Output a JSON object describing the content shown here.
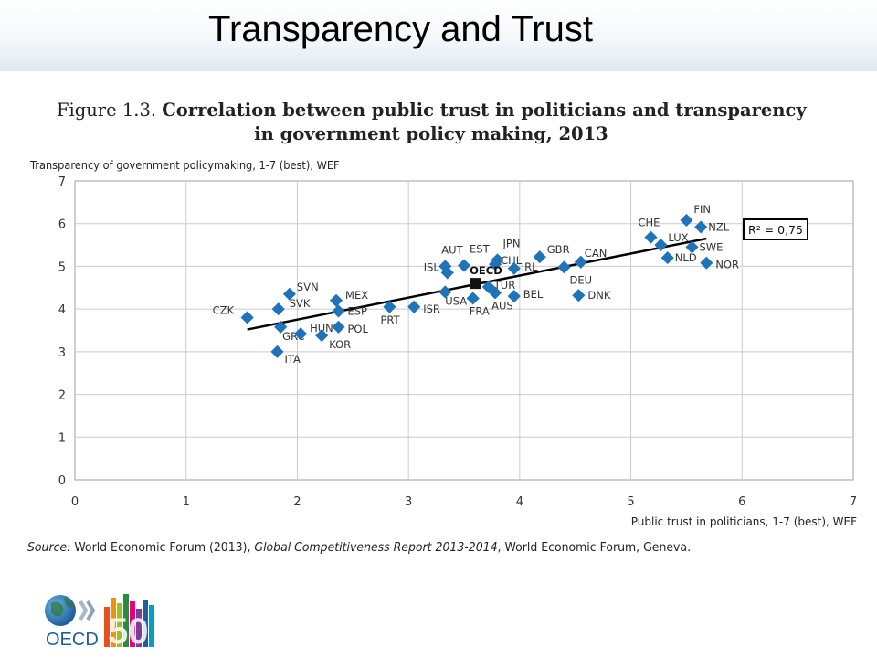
{
  "slide": {
    "title": "Transparency and Trust"
  },
  "figure": {
    "label": "Figure 1.3.",
    "title_line1": "Correlation between public trust in politicians and transparency",
    "title_line2": "in government policy making, 2013",
    "source_label": "Source:",
    "source_text": " World Economic Forum (2013), ",
    "source_italic": "Global Competitiveness Report 2013-2014",
    "source_tail": ", World Economic Forum, Geneva."
  },
  "logo": {
    "text": "OECD",
    "number": "50"
  },
  "colors": {
    "marker": "#1e73b9",
    "trend": "#000000",
    "grid": "#c8cbd0",
    "plot_bg": "#ffffff"
  },
  "chart_data": {
    "type": "scatter",
    "title": "Correlation between public trust in politicians and transparency in government policy making, 2013",
    "xlabel": "Public trust in politicians, 1-7 (best), WEF",
    "ylabel": "Transparency of government policymaking, 1-7 (best), WEF",
    "xlim": [
      0,
      7
    ],
    "ylim": [
      0,
      7
    ],
    "xticks": [
      "0",
      "1",
      "2",
      "3",
      "4",
      "5",
      "6",
      "7"
    ],
    "yticks": [
      "0",
      "1",
      "2",
      "3",
      "4",
      "5",
      "6",
      "7"
    ],
    "grid": true,
    "annotation": "R² = 0,75",
    "trendline": {
      "x": [
        1.55,
        5.68
      ],
      "y": [
        3.52,
        5.65
      ]
    },
    "oecd_average": {
      "label": "OECD",
      "x": 3.6,
      "y": 4.6
    },
    "points": [
      {
        "label": "CZK",
        "x": 1.55,
        "y": 3.8
      },
      {
        "label": "SVN",
        "x": 1.93,
        "y": 4.35
      },
      {
        "label": "SVK",
        "x": 1.83,
        "y": 4.0
      },
      {
        "label": "GRC",
        "x": 1.85,
        "y": 3.58
      },
      {
        "label": "ITA",
        "x": 1.82,
        "y": 3.0
      },
      {
        "label": "HUN",
        "x": 2.03,
        "y": 3.42
      },
      {
        "label": "KOR",
        "x": 2.22,
        "y": 3.38
      },
      {
        "label": "MEX",
        "x": 2.35,
        "y": 4.2
      },
      {
        "label": "ESP",
        "x": 2.37,
        "y": 3.95
      },
      {
        "label": "POL",
        "x": 2.37,
        "y": 3.58
      },
      {
        "label": "PRT",
        "x": 2.83,
        "y": 4.05
      },
      {
        "label": "ISR",
        "x": 3.05,
        "y": 4.05
      },
      {
        "label": "AUT",
        "x": 3.33,
        "y": 5.0
      },
      {
        "label": "ISL",
        "x": 3.35,
        "y": 4.85
      },
      {
        "label": "EST",
        "x": 3.5,
        "y": 5.02
      },
      {
        "label": "USA",
        "x": 3.33,
        "y": 4.4
      },
      {
        "label": "FRA",
        "x": 3.58,
        "y": 4.25
      },
      {
        "label": "TUR",
        "x": 3.72,
        "y": 4.52
      },
      {
        "label": "AUS",
        "x": 3.78,
        "y": 4.38
      },
      {
        "label": "JPN",
        "x": 3.8,
        "y": 5.15
      },
      {
        "label": "CHL",
        "x": 3.78,
        "y": 5.05
      },
      {
        "label": "IRL",
        "x": 3.95,
        "y": 4.95
      },
      {
        "label": "BEL",
        "x": 3.95,
        "y": 4.3
      },
      {
        "label": "GBR",
        "x": 4.18,
        "y": 5.22
      },
      {
        "label": "CAN",
        "x": 4.55,
        "y": 5.1
      },
      {
        "label": "DEU",
        "x": 4.4,
        "y": 4.98
      },
      {
        "label": "DNK",
        "x": 4.53,
        "y": 4.32
      },
      {
        "label": "CHE",
        "x": 5.18,
        "y": 5.68
      },
      {
        "label": "FIN",
        "x": 5.5,
        "y": 6.08
      },
      {
        "label": "NZL",
        "x": 5.63,
        "y": 5.92
      },
      {
        "label": "LUX",
        "x": 5.27,
        "y": 5.5
      },
      {
        "label": "SWE",
        "x": 5.55,
        "y": 5.45
      },
      {
        "label": "NLD",
        "x": 5.33,
        "y": 5.2
      },
      {
        "label": "NOR",
        "x": 5.68,
        "y": 5.08
      }
    ]
  }
}
